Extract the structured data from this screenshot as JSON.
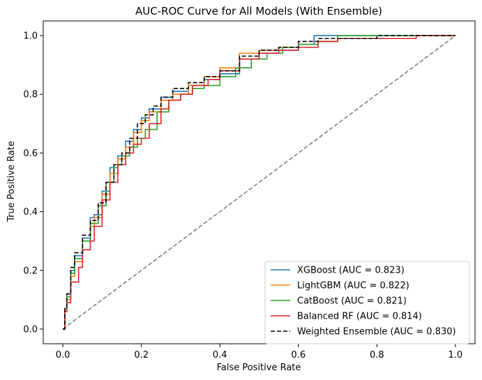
{
  "chart_data": {
    "type": "line",
    "title": "AUC-ROC Curve for All Models (With Ensemble)",
    "xlabel": "False Positive Rate",
    "ylabel": "True Positive Rate",
    "xlim": [
      -0.05,
      1.05
    ],
    "ylim": [
      -0.05,
      1.05
    ],
    "xticks": [
      "0.0",
      "0.2",
      "0.4",
      "0.6",
      "0.8",
      "1.0"
    ],
    "yticks": [
      "0.0",
      "0.2",
      "0.4",
      "0.6",
      "0.8",
      "1.0"
    ],
    "grid": false,
    "legend_position": "lower-right",
    "baseline": {
      "x": [
        0,
        1
      ],
      "y": [
        0,
        1
      ],
      "color": "#808080",
      "dashed": true
    },
    "series": [
      {
        "name": "XGBoost (AUC = 0.823)",
        "color": "#1f77b4",
        "dashed": false,
        "x": [
          0,
          0.005,
          0.01,
          0.02,
          0.03,
          0.05,
          0.07,
          0.08,
          0.1,
          0.12,
          0.14,
          0.16,
          0.18,
          0.2,
          0.22,
          0.25,
          0.28,
          0.32,
          0.36,
          0.4,
          0.45,
          0.5,
          0.55,
          0.6,
          0.64,
          0.7,
          0.8,
          0.9,
          1.0
        ],
        "y": [
          0,
          0.07,
          0.12,
          0.2,
          0.25,
          0.31,
          0.38,
          0.39,
          0.47,
          0.55,
          0.59,
          0.64,
          0.68,
          0.72,
          0.75,
          0.79,
          0.81,
          0.83,
          0.85,
          0.87,
          0.92,
          0.94,
          0.95,
          0.97,
          1.0,
          1.0,
          1.0,
          1.0,
          1.0
        ]
      },
      {
        "name": "LightGBM (AUC = 0.822)",
        "color": "#ff7f0e",
        "dashed": false,
        "x": [
          0,
          0.005,
          0.01,
          0.02,
          0.03,
          0.05,
          0.07,
          0.08,
          0.1,
          0.12,
          0.14,
          0.16,
          0.18,
          0.2,
          0.22,
          0.25,
          0.28,
          0.32,
          0.36,
          0.4,
          0.45,
          0.5,
          0.55,
          0.6,
          0.65,
          0.7,
          0.8,
          0.9,
          1.0
        ],
        "y": [
          0,
          0.06,
          0.1,
          0.18,
          0.23,
          0.3,
          0.35,
          0.38,
          0.46,
          0.53,
          0.58,
          0.62,
          0.67,
          0.71,
          0.74,
          0.78,
          0.8,
          0.83,
          0.86,
          0.89,
          0.94,
          0.95,
          0.96,
          0.97,
          0.98,
          0.99,
          0.99,
          1.0,
          1.0
        ]
      },
      {
        "name": "CatBoost (AUC = 0.821)",
        "color": "#2ca02c",
        "dashed": false,
        "x": [
          0,
          0.005,
          0.01,
          0.02,
          0.03,
          0.05,
          0.07,
          0.09,
          0.11,
          0.13,
          0.15,
          0.17,
          0.19,
          0.21,
          0.24,
          0.27,
          0.3,
          0.33,
          0.36,
          0.4,
          0.44,
          0.48,
          0.52,
          0.56,
          0.6,
          0.65,
          0.7,
          0.8,
          0.9,
          1.0
        ],
        "y": [
          0,
          0.07,
          0.11,
          0.19,
          0.24,
          0.3,
          0.36,
          0.42,
          0.5,
          0.56,
          0.59,
          0.62,
          0.65,
          0.68,
          0.74,
          0.78,
          0.8,
          0.82,
          0.83,
          0.86,
          0.89,
          0.92,
          0.94,
          0.96,
          0.97,
          0.98,
          1.0,
          1.0,
          1.0,
          1.0
        ]
      },
      {
        "name": "Balanced RF (AUC = 0.814)",
        "color": "#d62728",
        "dashed": false,
        "x": [
          0,
          0.005,
          0.01,
          0.02,
          0.04,
          0.05,
          0.07,
          0.08,
          0.1,
          0.12,
          0.14,
          0.16,
          0.18,
          0.2,
          0.22,
          0.25,
          0.27,
          0.3,
          0.33,
          0.37,
          0.4,
          0.45,
          0.5,
          0.55,
          0.6,
          0.65,
          0.7,
          0.8,
          0.9,
          1.0
        ],
        "y": [
          0,
          0.06,
          0.09,
          0.16,
          0.21,
          0.27,
          0.3,
          0.35,
          0.44,
          0.5,
          0.56,
          0.6,
          0.63,
          0.65,
          0.7,
          0.75,
          0.78,
          0.8,
          0.83,
          0.85,
          0.88,
          0.92,
          0.94,
          0.95,
          0.96,
          0.98,
          0.99,
          0.99,
          1.0,
          1.0
        ]
      },
      {
        "name": "Weighted Ensemble (AUC = 0.830)",
        "color": "#000000",
        "dashed": true,
        "x": [
          0,
          0.005,
          0.01,
          0.02,
          0.03,
          0.05,
          0.07,
          0.09,
          0.11,
          0.13,
          0.15,
          0.17,
          0.19,
          0.21,
          0.23,
          0.25,
          0.28,
          0.32,
          0.36,
          0.4,
          0.45,
          0.5,
          0.55,
          0.6,
          0.65,
          0.7,
          0.8,
          0.9,
          1.0
        ],
        "y": [
          0,
          0.07,
          0.12,
          0.21,
          0.26,
          0.32,
          0.37,
          0.43,
          0.5,
          0.56,
          0.6,
          0.65,
          0.7,
          0.73,
          0.76,
          0.79,
          0.82,
          0.84,
          0.86,
          0.88,
          0.93,
          0.95,
          0.96,
          0.98,
          0.99,
          0.99,
          1.0,
          1.0,
          1.0
        ]
      }
    ]
  }
}
